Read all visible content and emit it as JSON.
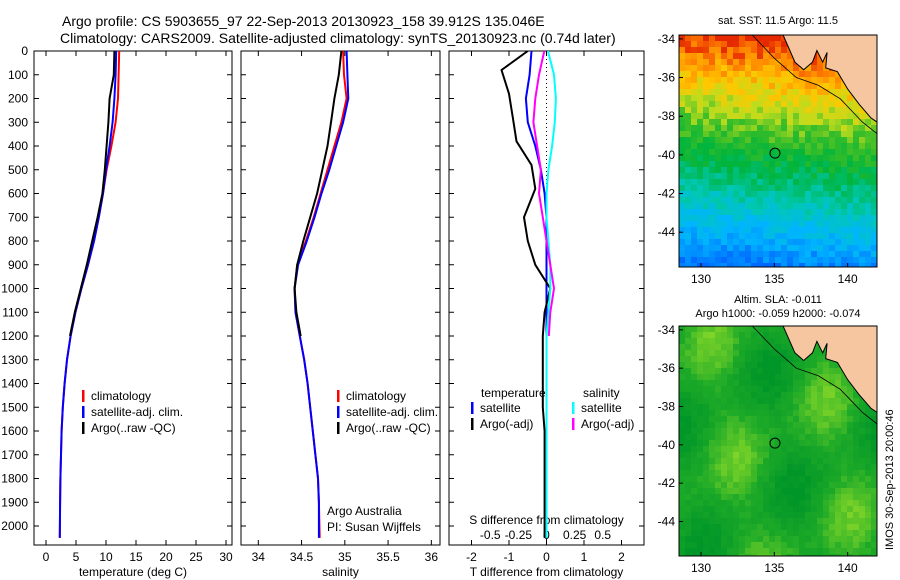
{
  "header": {
    "line1": "Argo profile: CS 5903655_97 22-Sep-2013 20130923_158 39.912S 135.046E",
    "line2": "Climatology: CARS2009. Satellite-adjusted climatology: synTS_20130923.nc (0.74d later)"
  },
  "colors": {
    "climatology": "#ff0000",
    "satellite": "#0000ff",
    "argo": "#000000",
    "sal_satellite": "#00ffff",
    "sal_argo": "#ff00ff",
    "land": "#f5c6a0"
  },
  "chart_data": [
    {
      "type": "line",
      "id": "temperature",
      "xlabel": "temperature (deg C)",
      "ylabel": "",
      "xlim": [
        -2,
        31
      ],
      "ylim": [
        2080,
        0
      ],
      "xticks": [
        0,
        5,
        10,
        15,
        20,
        25,
        30
      ],
      "yticks": [
        0,
        100,
        200,
        300,
        400,
        500,
        600,
        700,
        800,
        900,
        1000,
        1100,
        1200,
        1300,
        1400,
        1500,
        1600,
        1700,
        1800,
        1900,
        2000
      ],
      "legend": [
        "climatology",
        "satellite-adj. clim.",
        "Argo(..raw -QC)"
      ],
      "series": [
        {
          "name": "climatology",
          "color": "#ff0000",
          "x": [
            12.2,
            12.1,
            12.0,
            11.6,
            10.9,
            10.1,
            9.5,
            8.8,
            8.0,
            7.0,
            5.9,
            4.9,
            4.1,
            3.5,
            3.1,
            2.8,
            2.6,
            2.5,
            2.4,
            2.35,
            2.3
          ],
          "y": [
            0,
            100,
            200,
            300,
            400,
            500,
            600,
            700,
            800,
            900,
            1000,
            1100,
            1200,
            1300,
            1400,
            1500,
            1600,
            1700,
            1800,
            1900,
            2050
          ]
        },
        {
          "name": "satellite-adj. clim.",
          "color": "#0000ff",
          "x": [
            11.7,
            11.6,
            11.4,
            11.1,
            10.6,
            10.0,
            9.5,
            8.8,
            8.0,
            7.0,
            5.9,
            4.9,
            4.1,
            3.5,
            3.1,
            2.8,
            2.6,
            2.5,
            2.4,
            2.35,
            2.3
          ],
          "y": [
            0,
            100,
            200,
            300,
            400,
            500,
            600,
            700,
            800,
            900,
            1000,
            1100,
            1200,
            1300,
            1400,
            1500,
            1600,
            1700,
            1800,
            1900,
            2050
          ]
        },
        {
          "name": "Argo(..raw -QC)",
          "color": "#000000",
          "x": [
            11.4,
            11.3,
            10.6,
            10.4,
            10.1,
            9.8,
            9.4,
            8.6,
            7.7,
            6.8,
            5.8,
            4.8,
            4.0
          ],
          "y": [
            0,
            100,
            200,
            300,
            400,
            500,
            600,
            700,
            800,
            900,
            1000,
            1100,
            1200
          ]
        }
      ]
    },
    {
      "type": "line",
      "id": "salinity",
      "xlabel": "salinity",
      "ylabel": "",
      "xlim": [
        33.8,
        36.1
      ],
      "ylim": [
        2080,
        0
      ],
      "xticks": [
        34,
        34.5,
        35,
        35.5,
        36
      ],
      "legend": [
        "climatology",
        "satellite-adj. clim.",
        "Argo(..raw -QC)"
      ],
      "annotations": [
        "Argo Australia",
        "PI: Susan Wijffels"
      ],
      "series": [
        {
          "name": "climatology",
          "color": "#ff0000",
          "x": [
            34.98,
            34.99,
            35.02,
            34.96,
            34.88,
            34.8,
            34.72,
            34.64,
            34.55,
            34.45,
            34.42,
            34.43,
            34.48,
            34.53,
            34.57,
            34.6,
            34.63,
            34.66,
            34.69,
            34.7,
            34.71
          ],
          "y": [
            0,
            100,
            200,
            300,
            400,
            500,
            600,
            700,
            800,
            900,
            1000,
            1100,
            1200,
            1300,
            1400,
            1500,
            1600,
            1700,
            1800,
            1900,
            2050
          ]
        },
        {
          "name": "satellite-adj. clim.",
          "color": "#0000ff",
          "x": [
            35.02,
            35.03,
            35.04,
            34.98,
            34.9,
            34.82,
            34.73,
            34.65,
            34.56,
            34.46,
            34.42,
            34.43,
            34.48,
            34.53,
            34.57,
            34.6,
            34.63,
            34.66,
            34.69,
            34.7,
            34.7
          ],
          "y": [
            0,
            100,
            200,
            300,
            400,
            500,
            600,
            700,
            800,
            900,
            1000,
            1100,
            1200,
            1300,
            1400,
            1500,
            1600,
            1700,
            1800,
            1900,
            2050
          ]
        },
        {
          "name": "Argo(..raw -QC)",
          "color": "#000000",
          "x": [
            34.96,
            34.93,
            34.88,
            34.84,
            34.8,
            34.74,
            34.68,
            34.6,
            34.52,
            34.45,
            34.42,
            34.44,
            34.49
          ],
          "y": [
            0,
            100,
            200,
            300,
            400,
            500,
            600,
            700,
            800,
            900,
            1000,
            1100,
            1200
          ]
        }
      ]
    },
    {
      "type": "line",
      "id": "difference",
      "xlabel": "T difference from climatology",
      "ylabel": "",
      "title_top": "S difference from climatology",
      "xlim": [
        -2.6,
        2.6
      ],
      "ylim": [
        2080,
        0
      ],
      "xticks_bottom": [
        "-2",
        "-1",
        "0",
        "1",
        "2"
      ],
      "xticks_bottom_values": [
        -2,
        -1,
        0,
        1,
        2
      ],
      "xticks_top": [
        "-0.5",
        "-0.25",
        "0",
        "0.25",
        "0.5"
      ],
      "xticks_top_values": [
        -1.5,
        -0.75,
        0,
        0.75,
        1.5
      ],
      "legend_left_header": "temperature",
      "legend_right_header": "salinity",
      "legend": [
        "satellite",
        "Argo(-adj)",
        "satellite",
        "Argo(-adj)"
      ],
      "series": [
        {
          "name": "satellite",
          "color": "#0000ff",
          "x": [
            -0.4,
            -0.45,
            -0.55,
            -0.5,
            -0.3,
            -0.15,
            -0.05,
            0,
            0,
            0,
            0,
            0,
            0,
            0,
            0,
            0,
            0,
            0,
            0,
            0,
            0
          ],
          "y": [
            0,
            100,
            200,
            300,
            400,
            500,
            600,
            700,
            800,
            900,
            1000,
            1100,
            1200,
            1300,
            1400,
            1500,
            1600,
            1700,
            1800,
            1900,
            2050
          ]
        },
        {
          "name": "Argo(-adj)",
          "color": "#000000",
          "x": [
            -0.5,
            -1.2,
            -1.0,
            -0.9,
            -0.8,
            -0.4,
            -0.3,
            -0.6,
            -0.5,
            -0.3,
            0.1,
            -0.05,
            -0.1,
            -0.1,
            -0.1,
            -0.1,
            -0.05,
            -0.05,
            -0.05,
            -0.05,
            -0.05
          ],
          "y": [
            0,
            80,
            180,
            280,
            380,
            480,
            580,
            700,
            800,
            900,
            1000,
            1100,
            1200,
            1300,
            1400,
            1500,
            1600,
            1700,
            1800,
            1900,
            2050
          ]
        },
        {
          "name": "satellite",
          "color": "#00ffff",
          "x": [
            0.04,
            0.2,
            0.25,
            0.22,
            0.15,
            0.05,
            0,
            0,
            0.05,
            0.1,
            0.1,
            0.05,
            0,
            0,
            0,
            0,
            0,
            0,
            0,
            0,
            0
          ],
          "y": [
            0,
            100,
            200,
            300,
            400,
            500,
            600,
            700,
            800,
            900,
            1000,
            1100,
            1200,
            1300,
            1400,
            1500,
            1600,
            1700,
            1800,
            1900,
            2050
          ]
        },
        {
          "name": "Argo(-adj)",
          "color": "#ff00ff",
          "x": [
            -0.06,
            -0.2,
            -0.3,
            -0.35,
            -0.25,
            -0.15,
            -0.2,
            -0.1,
            0,
            0.1,
            0.2,
            0.1,
            0.06
          ],
          "y": [
            0,
            100,
            200,
            300,
            400,
            500,
            600,
            700,
            800,
            900,
            1000,
            1100,
            1200
          ]
        }
      ]
    },
    {
      "type": "heatmap",
      "id": "sst_map",
      "title": "sat. SST: 11.5 Argo: 11.5",
      "xticks": [
        130,
        135,
        140
      ],
      "yticks": [
        -34,
        -36,
        -38,
        -40,
        -42,
        -44
      ],
      "xlim": [
        128.5,
        142
      ],
      "ylim": [
        -45.8,
        -33.8
      ],
      "marker": {
        "lon": 135.046,
        "lat": -39.912
      }
    },
    {
      "type": "heatmap",
      "id": "sla_map",
      "title": "Altim. SLA: -0.011",
      "subtitle": "Argo h1000: -0.059 h2000: -0.074",
      "xticks": [
        130,
        135,
        140
      ],
      "yticks": [
        -34,
        -36,
        -38,
        -40,
        -42,
        -44
      ],
      "xlim": [
        128.5,
        142
      ],
      "ylim": [
        -45.8,
        -33.8
      ],
      "marker": {
        "lon": 135.046,
        "lat": -39.912
      }
    }
  ],
  "watermark": "IMOS 30-Sep-2013 20:00:46"
}
